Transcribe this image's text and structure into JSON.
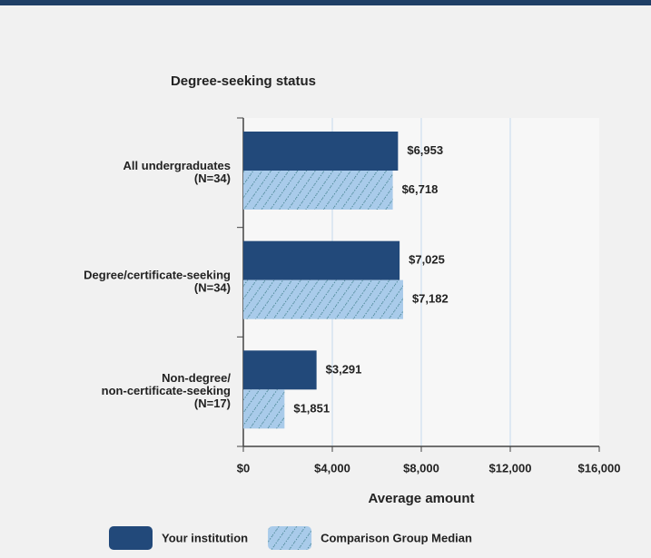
{
  "chart_data": {
    "type": "barh",
    "title": "Degree-seeking status",
    "xlabel": "Average amount",
    "categories": [
      [
        "All undergraduates",
        "(N=34)"
      ],
      [
        "Degree/certificate-seeking",
        "(N=34)"
      ],
      [
        "Non-degree/",
        "non-certificate-seeking",
        "(N=17)"
      ]
    ],
    "series": [
      {
        "name": "Your institution",
        "color": "#22497a",
        "hatched": false,
        "values": [
          6953,
          7025,
          3291
        ],
        "value_labels": [
          "$6,953",
          "$7,025",
          "$3,291"
        ]
      },
      {
        "name": "Comparison Group Median",
        "color": "#a9cbea",
        "hatched": true,
        "values": [
          6718,
          7182,
          1851
        ],
        "value_labels": [
          "$6,718",
          "$7,182",
          "$1,851"
        ]
      }
    ],
    "xlim": [
      0,
      16000
    ],
    "xticks": [
      {
        "value": 0,
        "label": "$0"
      },
      {
        "value": 4000,
        "label": "$4,000"
      },
      {
        "value": 8000,
        "label": "$8,000"
      },
      {
        "value": 12000,
        "label": "$12,000"
      },
      {
        "value": 16000,
        "label": "$16,000"
      }
    ],
    "grid": true,
    "legend": "bottom"
  }
}
